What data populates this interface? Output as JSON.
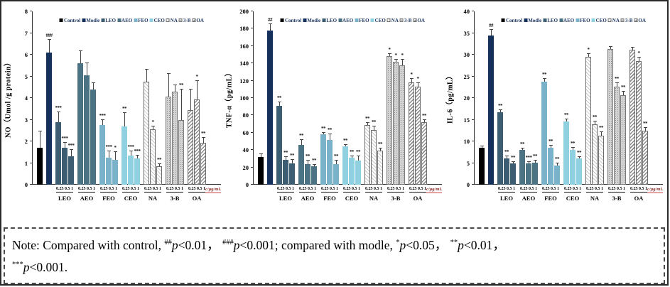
{
  "legend": [
    "Control",
    "Modle",
    "LEO",
    "AEO",
    "FEO",
    "CEO",
    "NA",
    "3-B",
    "OA"
  ],
  "series_styles": {
    "Control": {
      "color": "#000000"
    },
    "Modle": {
      "color": "#16305c"
    },
    "LEO": {
      "color": "#3d5d72"
    },
    "AEO": {
      "color": "#4b7384"
    },
    "FEO": {
      "color": "#7ab3c9"
    },
    "CEO": {
      "color": "#8fd0e1"
    },
    "NA": {
      "pattern": "p-na"
    },
    "3-B": {
      "pattern": "p-3b"
    },
    "OA": {
      "pattern": "p-oa"
    }
  },
  "chart_data": [
    {
      "type": "bar",
      "ylabel": "NO（Umol /g protein）",
      "ylim": [
        0,
        8
      ],
      "ytick_step": 1,
      "dose_label": "0.25 0.5 1",
      "clabel": "c/μg/mL",
      "legend": [
        "Control",
        "Modle",
        "LEO",
        "AEO",
        "FEO",
        "CEO",
        "NA",
        "3-B",
        "OA"
      ],
      "groups": [
        {
          "series": "Control",
          "values": [
            1.7
          ],
          "err": [
            0.75
          ],
          "sig": [
            ""
          ]
        },
        {
          "series": "Modle",
          "values": [
            6.1
          ],
          "err": [
            0.6
          ],
          "sig": [
            "###"
          ]
        },
        {
          "series": "LEO",
          "values": [
            2.9,
            1.7,
            1.3
          ],
          "err": [
            0.45,
            0.25,
            0.3
          ],
          "sig": [
            "***",
            "***",
            "***"
          ]
        },
        {
          "series": "AEO",
          "values": [
            5.6,
            5.05,
            4.4
          ],
          "err": [
            0.55,
            0.55,
            0.3
          ],
          "sig": [
            "",
            "",
            ""
          ]
        },
        {
          "series": "FEO",
          "values": [
            2.75,
            1.25,
            1.15
          ],
          "err": [
            0.25,
            0.3,
            0.35
          ],
          "sig": [
            "***",
            "***",
            "*"
          ]
        },
        {
          "series": "CEO",
          "values": [
            2.7,
            1.35,
            1.2
          ],
          "err": [
            0.6,
            0.2,
            0.15
          ],
          "sig": [
            "**",
            "***",
            "***"
          ]
        },
        {
          "series": "NA",
          "values": [
            4.75,
            2.55,
            0.85
          ],
          "err": [
            0.55,
            0.15,
            0.1
          ],
          "sig": [
            "",
            "*",
            "**"
          ]
        },
        {
          "series": "3-B",
          "values": [
            4.05,
            4.3,
            3.0
          ],
          "err": [
            1.05,
            0.3,
            1.4
          ],
          "sig": [
            "",
            "",
            "**"
          ]
        },
        {
          "series": "OA",
          "values": [
            3.45,
            3.95,
            1.95
          ],
          "err": [
            0.95,
            0.85,
            0.2
          ],
          "sig": [
            "",
            "*",
            "**"
          ]
        }
      ]
    },
    {
      "type": "bar",
      "ylabel": "TNF-α（pg/mL）",
      "ylim": [
        0,
        200
      ],
      "ytick_step": 20,
      "dose_label": "0.25 0.5 1",
      "clabel": "c/μg/mL",
      "legend": [
        "Control",
        "Modle",
        "LEO",
        "AEO",
        "FEO",
        "CEO",
        "NA",
        "3-B",
        "OA"
      ],
      "groups": [
        {
          "series": "Control",
          "values": [
            32
          ],
          "err": [
            3
          ],
          "sig": [
            ""
          ]
        },
        {
          "series": "Modle",
          "values": [
            178
          ],
          "err": [
            7
          ],
          "sig": [
            "##"
          ]
        },
        {
          "series": "LEO",
          "values": [
            91,
            29,
            25
          ],
          "err": [
            4,
            3,
            4
          ],
          "sig": [
            "**",
            "**",
            "**"
          ]
        },
        {
          "series": "AEO",
          "values": [
            46,
            24,
            21
          ],
          "err": [
            6,
            4,
            2
          ],
          "sig": [
            "**",
            "**",
            "**"
          ]
        },
        {
          "series": "FEO",
          "values": [
            58,
            52,
            24
          ],
          "err": [
            2,
            6,
            4
          ],
          "sig": [
            "**",
            "**",
            "**"
          ]
        },
        {
          "series": "CEO",
          "values": [
            44,
            31,
            28
          ],
          "err": [
            2,
            2,
            5
          ],
          "sig": [
            "**",
            "**",
            "**"
          ]
        },
        {
          "series": "NA",
          "values": [
            69,
            63,
            39
          ],
          "err": [
            2,
            4,
            3
          ],
          "sig": [
            "**",
            "**",
            "**"
          ]
        },
        {
          "series": "3-B",
          "values": [
            148,
            142,
            138
          ],
          "err": [
            3,
            2,
            6
          ],
          "sig": [
            "*",
            "*",
            "*"
          ]
        },
        {
          "series": "OA",
          "values": [
            118,
            113,
            72
          ],
          "err": [
            4,
            4,
            3
          ],
          "sig": [
            "*",
            "*",
            "**"
          ]
        }
      ]
    },
    {
      "type": "bar",
      "ylabel": "IL-6（pg/mL）",
      "ylim": [
        0,
        40
      ],
      "ytick_step": 5,
      "dose_label": "0.25 0.5 1",
      "clabel": "c/μg/mL",
      "legend": [
        "Control",
        "Modle",
        "LEO",
        "AEO",
        "FEO",
        "CEO",
        "NA",
        "3-B",
        "OA"
      ],
      "groups": [
        {
          "series": "Control",
          "values": [
            8.5
          ],
          "err": [
            0.4
          ],
          "sig": [
            ""
          ]
        },
        {
          "series": "Modle",
          "values": [
            34.5
          ],
          "err": [
            1.2
          ],
          "sig": [
            "##"
          ]
        },
        {
          "series": "LEO",
          "values": [
            16.7,
            6.0,
            5.0
          ],
          "err": [
            0.5,
            0.5,
            0.3
          ],
          "sig": [
            "**",
            "**",
            "**"
          ]
        },
        {
          "series": "AEO",
          "values": [
            8.0,
            4.9,
            5.1
          ],
          "err": [
            0.3,
            0.3,
            0.4
          ],
          "sig": [
            "**",
            "***",
            "**"
          ]
        },
        {
          "series": "FEO",
          "values": [
            23.8,
            8.5,
            4.5
          ],
          "err": [
            0.6,
            0.6,
            0.4
          ],
          "sig": [
            "**",
            "**",
            "**"
          ]
        },
        {
          "series": "CEO",
          "values": [
            14.6,
            8.1,
            6.1
          ],
          "err": [
            0.5,
            0.5,
            0.3
          ],
          "sig": [
            "**",
            "**",
            "**"
          ]
        },
        {
          "series": "NA",
          "values": [
            29.5,
            13.9,
            11.3
          ],
          "err": [
            0.6,
            0.7,
            0.8
          ],
          "sig": [
            "*",
            "**",
            "**"
          ]
        },
        {
          "series": "3-B",
          "values": [
            31.3,
            22.6,
            20.7
          ],
          "err": [
            0.5,
            0.8,
            0.7
          ],
          "sig": [
            "",
            "**",
            "**"
          ]
        },
        {
          "series": "OA",
          "values": [
            31.1,
            28.6,
            12.5
          ],
          "err": [
            0.5,
            0.8,
            0.6
          ],
          "sig": [
            "",
            "*",
            "**"
          ]
        }
      ]
    }
  ],
  "note": {
    "tokens": [
      [
        "t",
        "Note: Compared with control, "
      ],
      [
        "sup",
        "##"
      ],
      [
        "i",
        "p"
      ],
      [
        "t",
        "<0.01， "
      ],
      [
        "sup",
        "###"
      ],
      [
        "i",
        "p"
      ],
      [
        "t",
        "<0.001; compared with modle, "
      ],
      [
        "sup",
        "*"
      ],
      [
        "i",
        "p"
      ],
      [
        "t",
        "<0.05， "
      ],
      [
        "sup",
        "**"
      ],
      [
        "i",
        "p"
      ],
      [
        "t",
        "<0.01，"
      ],
      [
        "br",
        ""
      ],
      [
        "sup",
        "***"
      ],
      [
        "i",
        "p"
      ],
      [
        "t",
        "<0.001."
      ]
    ]
  }
}
